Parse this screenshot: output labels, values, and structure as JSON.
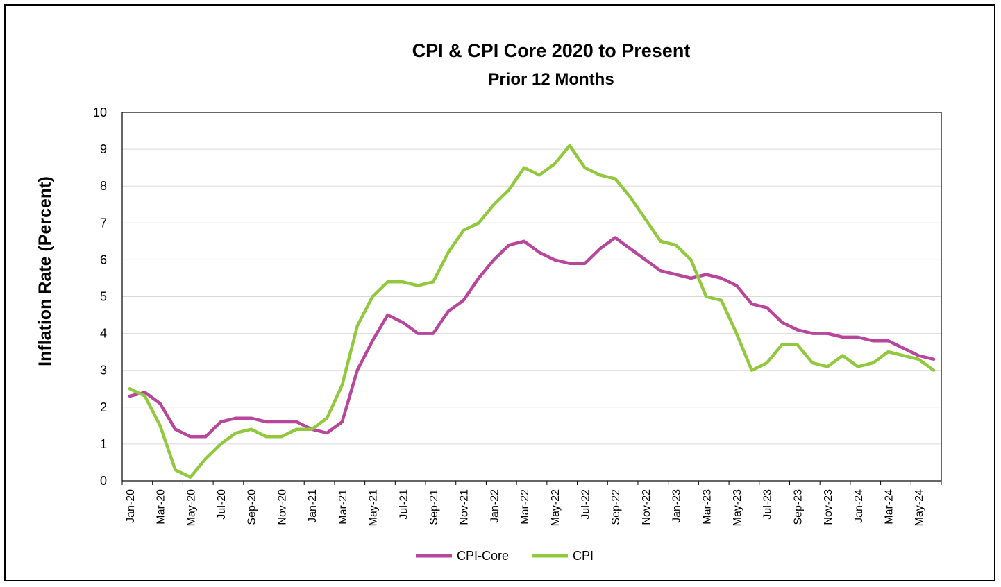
{
  "chart_data": {
    "type": "line",
    "title": "CPI & CPI Core  2020 to Present",
    "subtitle": "Prior 12 Months",
    "ylabel": "Inflation Rate (Percent)",
    "xlabel": "",
    "ylim": [
      0,
      10
    ],
    "yticks": [
      "0",
      "1",
      "2",
      "3",
      "4",
      "5",
      "6",
      "7",
      "8",
      "9",
      "10"
    ],
    "grid": true,
    "legend_position": "bottom",
    "x": [
      "Jan-20",
      "Feb-20",
      "Mar-20",
      "Apr-20",
      "May-20",
      "Jun-20",
      "Jul-20",
      "Aug-20",
      "Sep-20",
      "Oct-20",
      "Nov-20",
      "Dec-20",
      "Jan-21",
      "Feb-21",
      "Mar-21",
      "Apr-21",
      "May-21",
      "Jun-21",
      "Jul-21",
      "Aug-21",
      "Sep-21",
      "Oct-21",
      "Nov-21",
      "Dec-21",
      "Jan-22",
      "Feb-22",
      "Mar-22",
      "Apr-22",
      "May-22",
      "Jun-22",
      "Jul-22",
      "Aug-22",
      "Sep-22",
      "Oct-22",
      "Nov-22",
      "Dec-22",
      "Jan-23",
      "Feb-23",
      "Mar-23",
      "Apr-23",
      "May-23",
      "Jun-23",
      "Jul-23",
      "Aug-23",
      "Sep-23",
      "Oct-23",
      "Nov-23",
      "Dec-23",
      "Jan-24",
      "Feb-24",
      "Mar-24",
      "Apr-24",
      "May-24",
      "Jun-24"
    ],
    "xtick_labels": [
      "Jan-20",
      "Mar-20",
      "May-20",
      "Jul-20",
      "Sep-20",
      "Nov-20",
      "Jan-21",
      "Mar-21",
      "May-21",
      "Jul-21",
      "Sep-21",
      "Nov-21",
      "Jan-22",
      "Mar-22",
      "May-22",
      "Jul-22",
      "Sep-22",
      "Nov-22",
      "Jan-23",
      "Mar-23",
      "May-23",
      "Jul-23",
      "Sep-23",
      "Nov-23",
      "Jan-24",
      "Mar-24",
      "May-24"
    ],
    "series": [
      {
        "name": "CPI-Core",
        "color": "#b8469b",
        "values": [
          2.3,
          2.4,
          2.1,
          1.4,
          1.2,
          1.2,
          1.6,
          1.7,
          1.7,
          1.6,
          1.6,
          1.6,
          1.4,
          1.3,
          1.6,
          3.0,
          3.8,
          4.5,
          4.3,
          4.0,
          4.0,
          4.6,
          4.9,
          5.5,
          6.0,
          6.4,
          6.5,
          6.2,
          6.0,
          5.9,
          5.9,
          6.3,
          6.6,
          6.3,
          6.0,
          5.7,
          5.6,
          5.5,
          5.6,
          5.5,
          5.3,
          4.8,
          4.7,
          4.3,
          4.1,
          4.0,
          4.0,
          3.9,
          3.9,
          3.8,
          3.8,
          3.6,
          3.4,
          3.3
        ]
      },
      {
        "name": "CPI",
        "color": "#92c83e",
        "values": [
          2.5,
          2.3,
          1.5,
          0.3,
          0.1,
          0.6,
          1.0,
          1.3,
          1.4,
          1.2,
          1.2,
          1.4,
          1.4,
          1.7,
          2.6,
          4.2,
          5.0,
          5.4,
          5.4,
          5.3,
          5.4,
          6.2,
          6.8,
          7.0,
          7.5,
          7.9,
          8.5,
          8.3,
          8.6,
          9.1,
          8.5,
          8.3,
          8.2,
          7.7,
          7.1,
          6.5,
          6.4,
          6.0,
          5.0,
          4.9,
          4.0,
          3.0,
          3.2,
          3.7,
          3.7,
          3.2,
          3.1,
          3.4,
          3.1,
          3.2,
          3.5,
          3.4,
          3.3,
          3.0
        ]
      }
    ]
  }
}
